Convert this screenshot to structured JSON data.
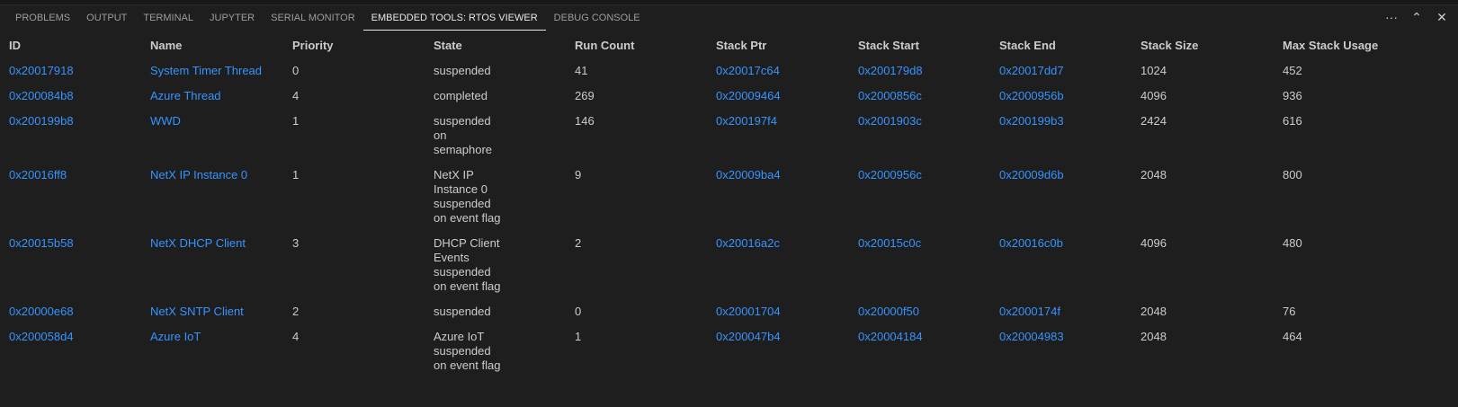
{
  "tabs": [
    "PROBLEMS",
    "OUTPUT",
    "TERMINAL",
    "JUPYTER",
    "SERIAL MONITOR",
    "EMBEDDED TOOLS: RTOS VIEWER",
    "DEBUG CONSOLE"
  ],
  "active_tab": "EMBEDDED TOOLS: RTOS VIEWER",
  "actions": {
    "more": "···",
    "maximize": "⌃",
    "close": "✕"
  },
  "columns": [
    "ID",
    "Name",
    "Priority",
    "State",
    "Run Count",
    "Stack Ptr",
    "Stack Start",
    "Stack End",
    "Stack Size",
    "Max Stack Usage"
  ],
  "rows": [
    [
      "0x20017918",
      "System Timer Thread",
      "0",
      "suspended",
      "41",
      "0x20017c64",
      "0x200179d8",
      "0x20017dd7",
      "1024",
      "452"
    ],
    [
      "0x200084b8",
      "Azure Thread",
      "4",
      "completed",
      "269",
      "0x20009464",
      "0x2000856c",
      "0x2000956b",
      "4096",
      "936"
    ],
    [
      "0x200199b8",
      "WWD",
      "1",
      "suspended on semaphore",
      "146",
      "0x200197f4",
      "0x2001903c",
      "0x200199b3",
      "2424",
      "616"
    ],
    [
      "0x20016ff8",
      "NetX IP Instance 0",
      "1",
      "NetX IP Instance 0 suspended on event flag",
      "9",
      "0x20009ba4",
      "0x2000956c",
      "0x20009d6b",
      "2048",
      "800"
    ],
    [
      "0x20015b58",
      "NetX DHCP Client",
      "3",
      "DHCP Client Events suspended on event flag",
      "2",
      "0x20016a2c",
      "0x20015c0c",
      "0x20016c0b",
      "4096",
      "480"
    ],
    [
      "0x20000e68",
      "NetX SNTP Client",
      "2",
      "suspended",
      "0",
      "0x20001704",
      "0x20000f50",
      "0x2000174f",
      "2048",
      "76"
    ],
    [
      "0x200058d4",
      "Azure IoT",
      "4",
      "Azure IoT suspended on event flag",
      "1",
      "0x200047b4",
      "0x20004184",
      "0x20004983",
      "2048",
      "464"
    ]
  ],
  "colors": {
    "background": "#1e1e1e",
    "link": "#3794ff",
    "text": "#cccccc"
  }
}
